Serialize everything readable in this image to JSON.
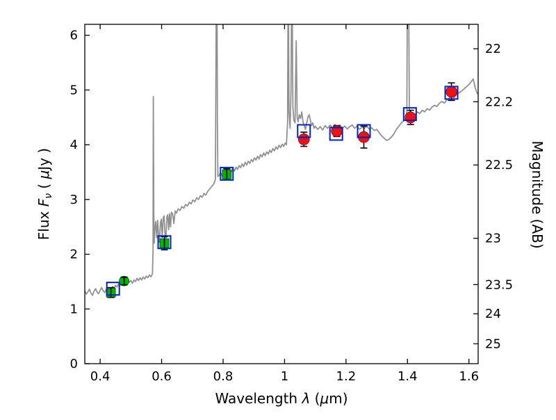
{
  "figure": {
    "background": "#ffffff"
  },
  "chart_data": {
    "type": "line",
    "title": "",
    "xlabel_parts": {
      "word": "Wavelength  ",
      "lambda": "λ",
      "open": " (",
      "mu": "μ",
      "close": "m)"
    },
    "ylabel_left_parts": {
      "flux": "Flux  ",
      "F": "F",
      "nu": "ν",
      "open": "  ( ",
      "mu": "μ",
      "close": "Jy )"
    },
    "ylabel_right": "Magnitude (AB)",
    "xlim": [
      0.35,
      1.63
    ],
    "ylim_flux": [
      0,
      6.2
    ],
    "grid": false,
    "legend": "none",
    "x_ticks": [
      {
        "value": 0.4,
        "label": "0.4"
      },
      {
        "value": 0.6,
        "label": "0.6"
      },
      {
        "value": 0.8,
        "label": "0.8"
      },
      {
        "value": 1.0,
        "label": "1"
      },
      {
        "value": 1.2,
        "label": "1.2"
      },
      {
        "value": 1.4,
        "label": "1.4"
      },
      {
        "value": 1.6,
        "label": "1.6"
      }
    ],
    "y_ticks_flux": [
      {
        "value": 0,
        "label": "0"
      },
      {
        "value": 1,
        "label": "1"
      },
      {
        "value": 2,
        "label": "2"
      },
      {
        "value": 3,
        "label": "3"
      },
      {
        "value": 4,
        "label": "4"
      },
      {
        "value": 5,
        "label": "5"
      },
      {
        "value": 6,
        "label": "6"
      }
    ],
    "y_ticks_magnitude": [
      {
        "label": "22",
        "flux": 5.754
      },
      {
        "label": "22.2",
        "flux": 4.786
      },
      {
        "label": "22.5",
        "flux": 3.631
      },
      {
        "label": "23",
        "flux": 2.291
      },
      {
        "label": "23.5",
        "flux": 1.445
      },
      {
        "label": "24",
        "flux": 0.912
      },
      {
        "label": "25",
        "flux": 0.363
      }
    ],
    "colors": {
      "spectrum": "#909090",
      "observed_green": "#00b300",
      "observed_green_edge": "#005500",
      "observed_red": "#ee1111",
      "observed_red_edge": "#770000",
      "model_blue": "#0022cc",
      "errorbar": "#000000",
      "axis": "#000000"
    },
    "series": [
      {
        "name": "model-spectrum",
        "type": "line",
        "points": [
          [
            0.35,
            1.33
          ],
          [
            0.355,
            1.27
          ],
          [
            0.36,
            1.31
          ],
          [
            0.365,
            1.36
          ],
          [
            0.37,
            1.29
          ],
          [
            0.375,
            1.25
          ],
          [
            0.38,
            1.32
          ],
          [
            0.385,
            1.37
          ],
          [
            0.39,
            1.31
          ],
          [
            0.395,
            1.28
          ],
          [
            0.4,
            1.34
          ],
          [
            0.405,
            1.39
          ],
          [
            0.41,
            1.33
          ],
          [
            0.415,
            1.3
          ],
          [
            0.42,
            1.36
          ],
          [
            0.425,
            1.32
          ],
          [
            0.43,
            1.38
          ],
          [
            0.435,
            1.34
          ],
          [
            0.44,
            1.41
          ],
          [
            0.445,
            1.37
          ],
          [
            0.45,
            1.43
          ],
          [
            0.455,
            1.4
          ],
          [
            0.46,
            1.46
          ],
          [
            0.465,
            1.43
          ],
          [
            0.47,
            1.49
          ],
          [
            0.475,
            1.45
          ],
          [
            0.48,
            1.51
          ],
          [
            0.485,
            1.47
          ],
          [
            0.49,
            1.53
          ],
          [
            0.495,
            1.49
          ],
          [
            0.5,
            1.52
          ],
          [
            0.505,
            1.47
          ],
          [
            0.51,
            1.53
          ],
          [
            0.515,
            1.5
          ],
          [
            0.52,
            1.56
          ],
          [
            0.525,
            1.52
          ],
          [
            0.53,
            1.57
          ],
          [
            0.535,
            1.53
          ],
          [
            0.54,
            1.58
          ],
          [
            0.545,
            1.55
          ],
          [
            0.55,
            1.6
          ],
          [
            0.555,
            1.57
          ],
          [
            0.56,
            1.62
          ],
          [
            0.565,
            1.59
          ],
          [
            0.57,
            1.64
          ],
          [
            0.572,
            2.05
          ],
          [
            0.573,
            4.88
          ],
          [
            0.5745,
            2.75
          ],
          [
            0.576,
            2.2
          ],
          [
            0.578,
            2.45
          ],
          [
            0.581,
            2.6
          ],
          [
            0.584,
            2.3
          ],
          [
            0.587,
            2.62
          ],
          [
            0.59,
            2.35
          ],
          [
            0.593,
            2.22
          ],
          [
            0.596,
            2.58
          ],
          [
            0.599,
            2.64
          ],
          [
            0.602,
            2.3
          ],
          [
            0.605,
            2.66
          ],
          [
            0.608,
            2.7
          ],
          [
            0.611,
            2.36
          ],
          [
            0.614,
            2.28
          ],
          [
            0.617,
            2.68
          ],
          [
            0.62,
            2.72
          ],
          [
            0.623,
            2.45
          ],
          [
            0.626,
            2.74
          ],
          [
            0.629,
            2.5
          ],
          [
            0.632,
            2.77
          ],
          [
            0.636,
            2.73
          ],
          [
            0.64,
            2.56
          ],
          [
            0.644,
            2.79
          ],
          [
            0.648,
            2.75
          ],
          [
            0.654,
            2.83
          ],
          [
            0.66,
            2.8
          ],
          [
            0.666,
            2.87
          ],
          [
            0.672,
            2.84
          ],
          [
            0.678,
            2.91
          ],
          [
            0.684,
            2.88
          ],
          [
            0.69,
            2.95
          ],
          [
            0.696,
            2.92
          ],
          [
            0.702,
            2.99
          ],
          [
            0.708,
            2.96
          ],
          [
            0.714,
            3.03
          ],
          [
            0.72,
            3.0
          ],
          [
            0.726,
            3.07
          ],
          [
            0.732,
            3.04
          ],
          [
            0.738,
            3.11
          ],
          [
            0.744,
            3.08
          ],
          [
            0.75,
            3.15
          ],
          [
            0.756,
            3.19
          ],
          [
            0.762,
            3.23
          ],
          [
            0.768,
            3.27
          ],
          [
            0.772,
            3.31
          ],
          [
            0.775,
            3.37
          ],
          [
            0.777,
            5.6
          ],
          [
            0.778,
            7.5
          ],
          [
            0.78,
            7.5
          ],
          [
            0.7815,
            4.4
          ],
          [
            0.783,
            3.42
          ],
          [
            0.787,
            3.44
          ],
          [
            0.792,
            3.49
          ],
          [
            0.797,
            3.43
          ],
          [
            0.802,
            3.5
          ],
          [
            0.807,
            3.46
          ],
          [
            0.812,
            3.52
          ],
          [
            0.817,
            3.47
          ],
          [
            0.822,
            3.54
          ],
          [
            0.827,
            3.5
          ],
          [
            0.832,
            3.57
          ],
          [
            0.837,
            3.52
          ],
          [
            0.842,
            3.59
          ],
          [
            0.847,
            3.55
          ],
          [
            0.852,
            3.62
          ],
          [
            0.857,
            3.58
          ],
          [
            0.862,
            3.65
          ],
          [
            0.867,
            3.6
          ],
          [
            0.872,
            3.68
          ],
          [
            0.877,
            3.63
          ],
          [
            0.882,
            3.7
          ],
          [
            0.887,
            3.66
          ],
          [
            0.892,
            3.73
          ],
          [
            0.897,
            3.69
          ],
          [
            0.902,
            3.76
          ],
          [
            0.907,
            3.72
          ],
          [
            0.912,
            3.79
          ],
          [
            0.917,
            3.74
          ],
          [
            0.922,
            3.82
          ],
          [
            0.927,
            3.78
          ],
          [
            0.932,
            3.85
          ],
          [
            0.937,
            3.8
          ],
          [
            0.942,
            3.87
          ],
          [
            0.947,
            3.83
          ],
          [
            0.952,
            3.9
          ],
          [
            0.957,
            3.86
          ],
          [
            0.962,
            3.93
          ],
          [
            0.967,
            3.89
          ],
          [
            0.972,
            3.96
          ],
          [
            0.977,
            3.92
          ],
          [
            0.982,
            3.99
          ],
          [
            0.987,
            3.95
          ],
          [
            0.992,
            4.01
          ],
          [
            0.997,
            3.97
          ],
          [
            1.002,
            4.03
          ],
          [
            1.006,
            4.0
          ],
          [
            1.01,
            4.4
          ],
          [
            1.012,
            7.5
          ],
          [
            1.0145,
            4.6
          ],
          [
            1.018,
            4.3
          ],
          [
            1.021,
            5.0
          ],
          [
            1.024,
            7.5
          ],
          [
            1.027,
            4.7
          ],
          [
            1.03,
            4.45
          ],
          [
            1.034,
            4.4
          ],
          [
            1.038,
            5.9
          ],
          [
            1.041,
            4.5
          ],
          [
            1.044,
            4.42
          ],
          [
            1.048,
            4.55
          ],
          [
            1.052,
            4.48
          ],
          [
            1.056,
            4.6
          ],
          [
            1.06,
            4.42
          ],
          [
            1.064,
            4.35
          ],
          [
            1.068,
            4.28
          ],
          [
            1.072,
            4.4
          ],
          [
            1.076,
            4.5
          ],
          [
            1.08,
            4.55
          ],
          [
            1.084,
            4.45
          ],
          [
            1.088,
            4.35
          ],
          [
            1.092,
            4.4
          ],
          [
            1.096,
            4.3
          ],
          [
            1.1,
            4.34
          ],
          [
            1.108,
            4.28
          ],
          [
            1.116,
            4.33
          ],
          [
            1.124,
            4.27
          ],
          [
            1.132,
            4.35
          ],
          [
            1.14,
            4.3
          ],
          [
            1.148,
            4.36
          ],
          [
            1.156,
            4.31
          ],
          [
            1.164,
            4.37
          ],
          [
            1.172,
            4.32
          ],
          [
            1.18,
            4.36
          ],
          [
            1.188,
            4.3
          ],
          [
            1.196,
            4.34
          ],
          [
            1.204,
            4.29
          ],
          [
            1.212,
            4.33
          ],
          [
            1.22,
            4.36
          ],
          [
            1.228,
            4.3
          ],
          [
            1.236,
            4.34
          ],
          [
            1.244,
            4.28
          ],
          [
            1.252,
            4.32
          ],
          [
            1.26,
            4.3
          ],
          [
            1.268,
            4.34
          ],
          [
            1.276,
            4.28
          ],
          [
            1.284,
            4.31
          ],
          [
            1.292,
            4.26
          ],
          [
            1.3,
            4.28
          ],
          [
            1.308,
            4.22
          ],
          [
            1.316,
            4.16
          ],
          [
            1.324,
            4.12
          ],
          [
            1.332,
            4.08
          ],
          [
            1.34,
            4.1
          ],
          [
            1.348,
            4.14
          ],
          [
            1.356,
            4.2
          ],
          [
            1.364,
            4.28
          ],
          [
            1.372,
            4.34
          ],
          [
            1.38,
            4.4
          ],
          [
            1.388,
            4.44
          ],
          [
            1.394,
            4.48
          ],
          [
            1.398,
            4.6
          ],
          [
            1.4,
            7.5
          ],
          [
            1.403,
            7.5
          ],
          [
            1.406,
            4.65
          ],
          [
            1.41,
            4.55
          ],
          [
            1.416,
            4.58
          ],
          [
            1.424,
            4.54
          ],
          [
            1.432,
            4.6
          ],
          [
            1.44,
            4.57
          ],
          [
            1.448,
            4.63
          ],
          [
            1.456,
            4.6
          ],
          [
            1.464,
            4.66
          ],
          [
            1.472,
            4.63
          ],
          [
            1.48,
            4.69
          ],
          [
            1.488,
            4.72
          ],
          [
            1.496,
            4.7
          ],
          [
            1.504,
            4.76
          ],
          [
            1.512,
            4.79
          ],
          [
            1.52,
            4.76
          ],
          [
            1.528,
            4.82
          ],
          [
            1.536,
            4.85
          ],
          [
            1.544,
            4.88
          ],
          [
            1.552,
            4.86
          ],
          [
            1.56,
            4.92
          ],
          [
            1.568,
            4.95
          ],
          [
            1.576,
            4.98
          ],
          [
            1.584,
            5.02
          ],
          [
            1.592,
            5.06
          ],
          [
            1.6,
            5.1
          ],
          [
            1.608,
            5.16
          ],
          [
            1.614,
            5.2
          ],
          [
            1.62,
            5.05
          ],
          [
            1.626,
            4.95
          ],
          [
            1.63,
            4.92
          ]
        ]
      },
      {
        "name": "observed-photometry-green",
        "type": "scatter",
        "points": [
          {
            "x": 0.435,
            "y": 1.3,
            "err": 0.09,
            "marker": "square"
          },
          {
            "x": 0.478,
            "y": 1.51,
            "err": 0.07,
            "marker": "circle"
          },
          {
            "x": 0.609,
            "y": 2.2,
            "err": 0.12,
            "marker": "square"
          },
          {
            "x": 0.812,
            "y": 3.46,
            "err": 0.1,
            "marker": "square"
          }
        ]
      },
      {
        "name": "observed-photometry-red",
        "type": "scatter",
        "points": [
          {
            "x": 1.063,
            "y": 4.1,
            "err": 0.13,
            "marker": "circle"
          },
          {
            "x": 1.17,
            "y": 4.25,
            "err": 0.1,
            "marker": "circle"
          },
          {
            "x": 1.258,
            "y": 4.14,
            "err": 0.2,
            "marker": "circle"
          },
          {
            "x": 1.41,
            "y": 4.5,
            "err": 0.13,
            "marker": "circle"
          },
          {
            "x": 1.543,
            "y": 4.97,
            "err": 0.16,
            "marker": "circle"
          }
        ]
      },
      {
        "name": "model-photometry-blue-squares",
        "type": "scatter",
        "points": [
          {
            "x": 0.442,
            "y": 1.37
          },
          {
            "x": 0.609,
            "y": 2.22
          },
          {
            "x": 0.812,
            "y": 3.47
          },
          {
            "x": 1.063,
            "y": 4.25
          },
          {
            "x": 1.168,
            "y": 4.2
          },
          {
            "x": 1.258,
            "y": 4.25
          },
          {
            "x": 1.408,
            "y": 4.56
          },
          {
            "x": 1.543,
            "y": 4.95
          }
        ]
      }
    ]
  }
}
